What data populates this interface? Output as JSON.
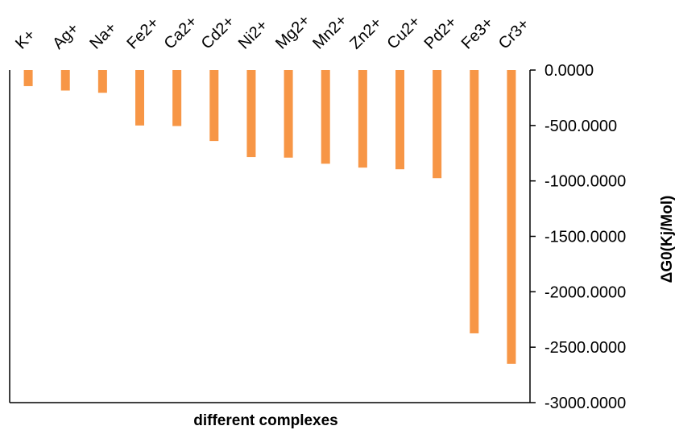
{
  "chart_data": {
    "type": "bar",
    "title": "",
    "xlabel": "different complexes",
    "ylabel": "ΔG0(Kj/Mol)",
    "categories": [
      "K+",
      "Ag+",
      "Na+",
      "Fe2+",
      "Ca2+",
      "Cd2+",
      "Ni2+",
      "Mg2+",
      "Mn2+",
      "Zn2+",
      "Cu2+",
      "Pd2+",
      "Fe3+",
      "Cr3+"
    ],
    "values": [
      -145,
      -185,
      -205,
      -500,
      -505,
      -640,
      -785,
      -790,
      -845,
      -880,
      -895,
      -975,
      -2375,
      -2650
    ],
    "ylim": [
      -3000,
      0
    ],
    "yticks": [
      0,
      -500,
      -1000,
      -1500,
      -2000,
      -2500,
      -3000
    ],
    "ytick_labels": [
      "0.0000",
      "-500.0000",
      "-1000.0000",
      "-1500.0000",
      "-2000.0000",
      "-2500.0000",
      "-3000.0000"
    ],
    "y_axis_side": "right",
    "category_labels_position": "top",
    "grid": false,
    "legend": "none",
    "bar_color": "#F79646"
  }
}
